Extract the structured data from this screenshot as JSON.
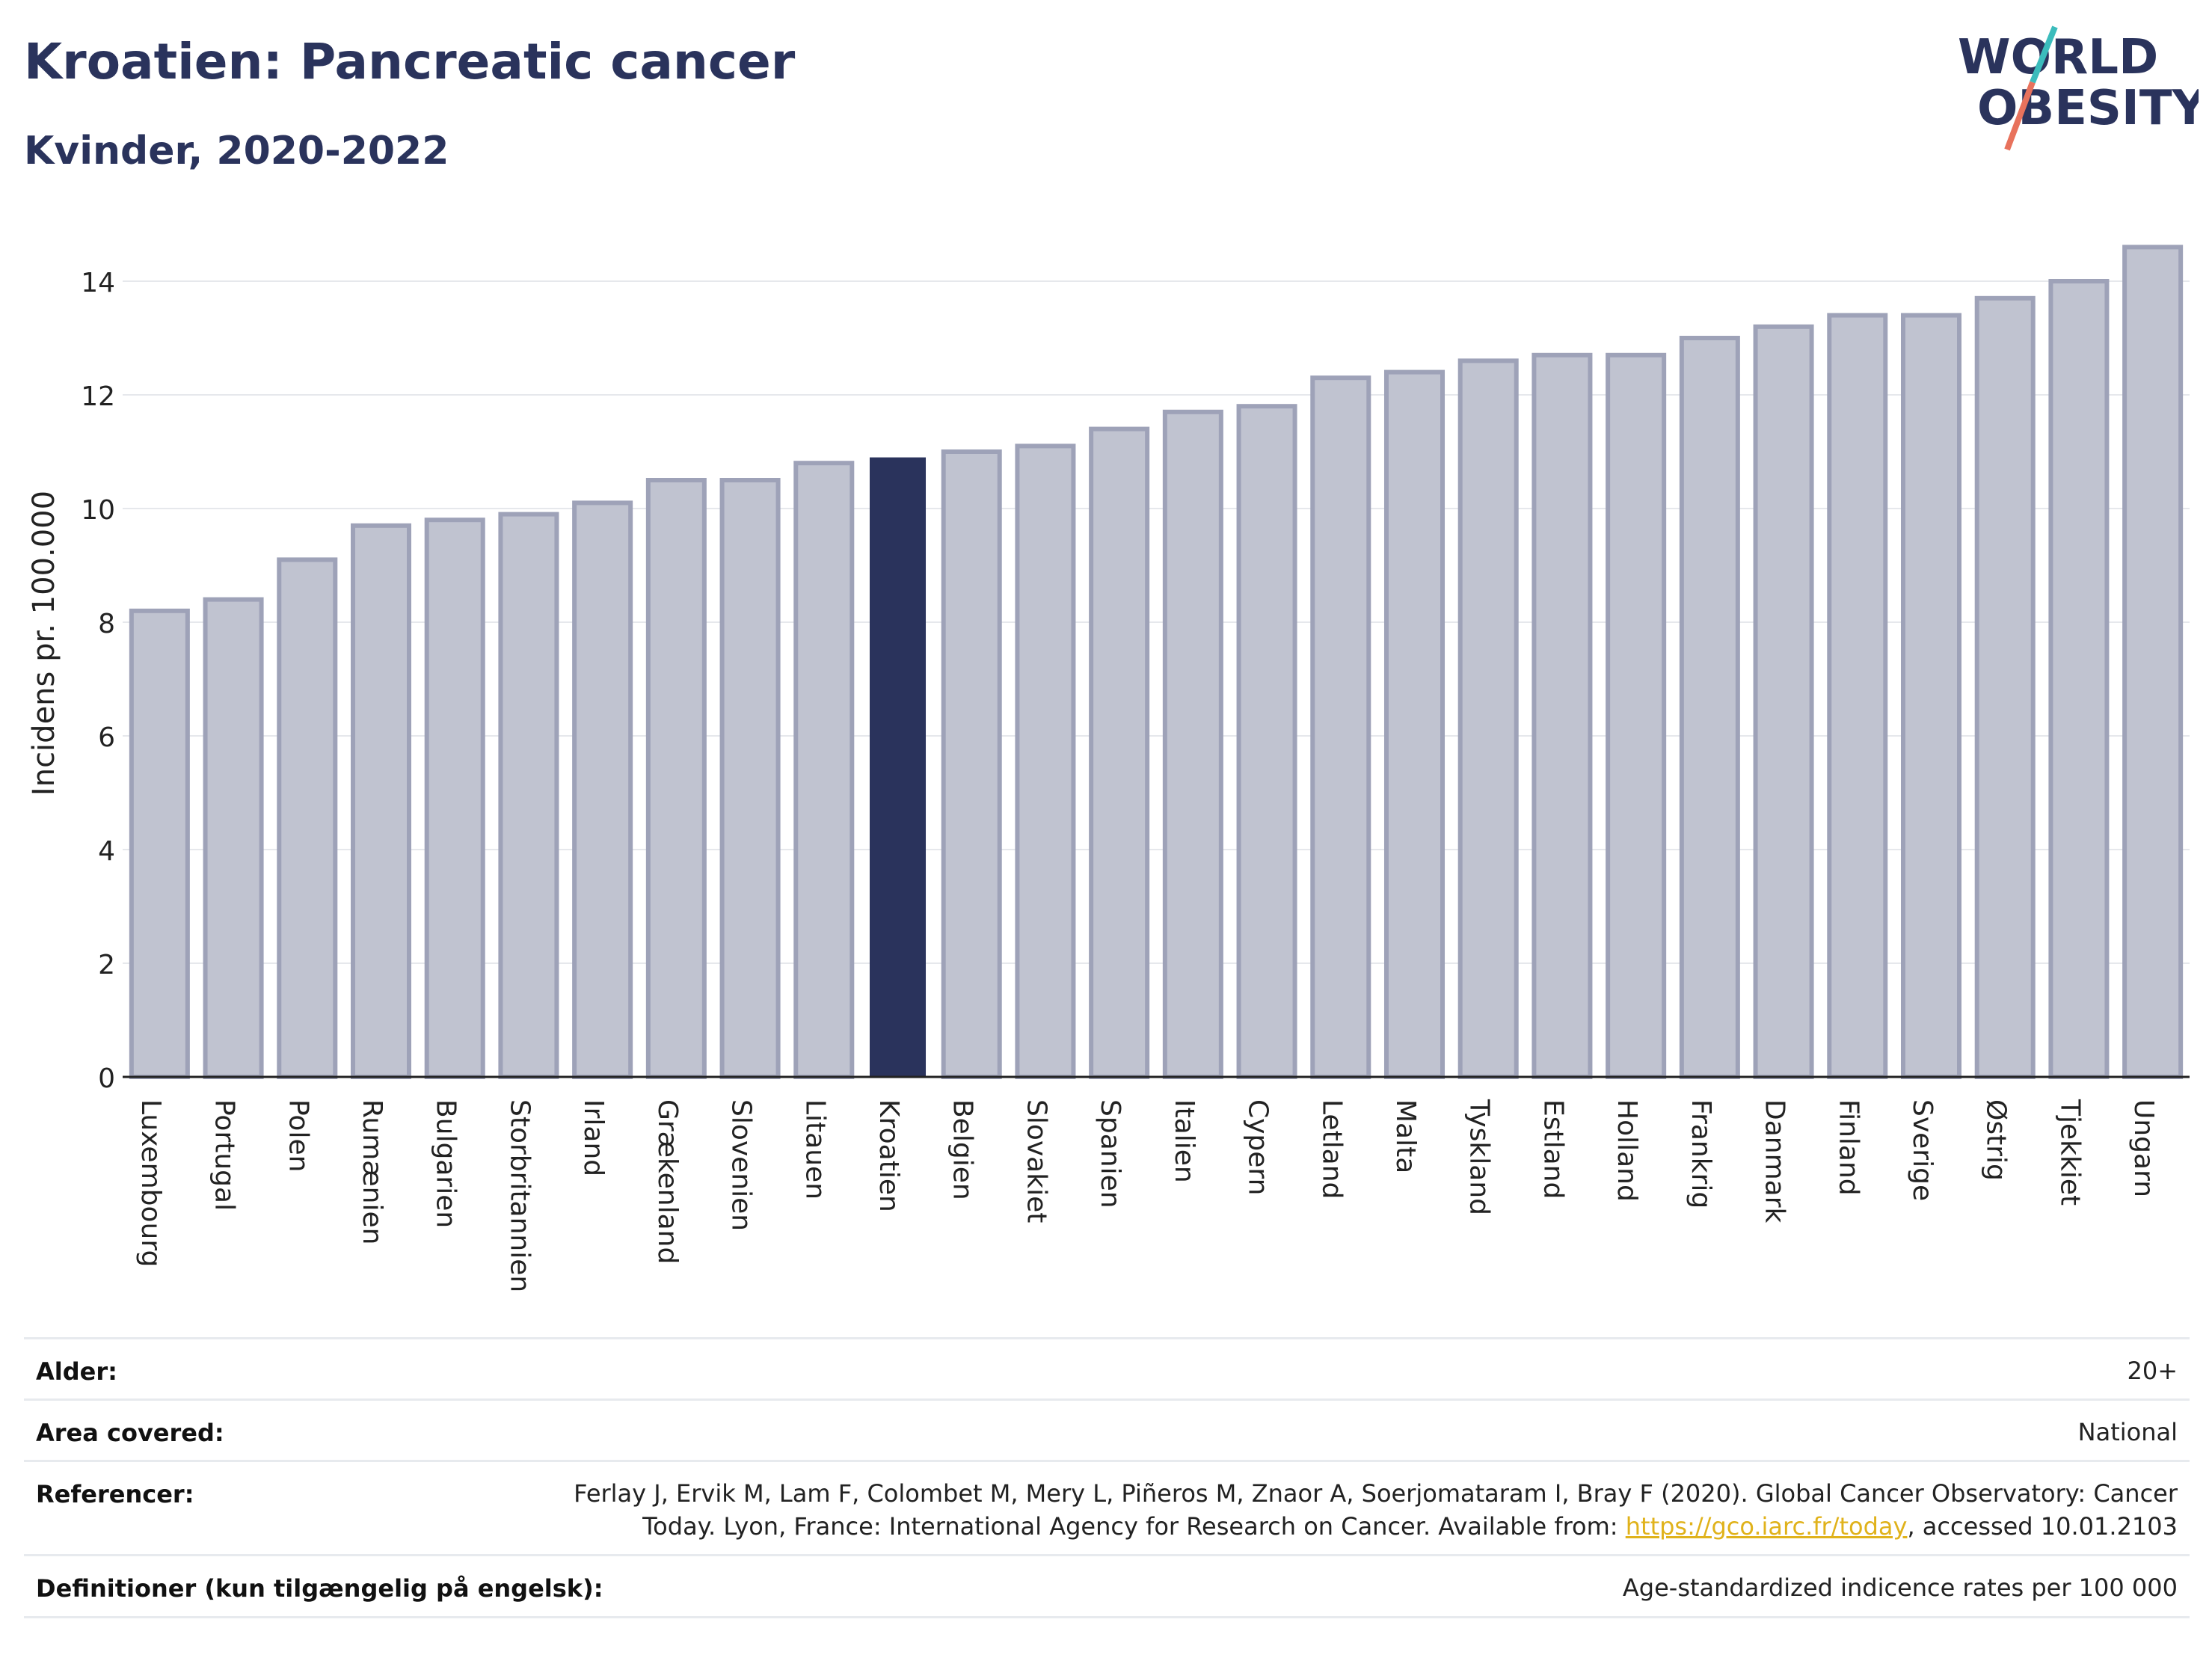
{
  "header": {
    "title": "Kroatien: Pancreatic cancer",
    "subtitle": "Kvinder, 2020-2022"
  },
  "logo": {
    "line1": "WORLD",
    "line2": "OBESITY"
  },
  "colors": {
    "highlight": "#2a335c",
    "bar_fill": "#c0c3d0",
    "bar_stroke": "#9ea2b8",
    "grid": "#e6e8ec",
    "logo_teal": "#3bbcbc",
    "logo_coral": "#e8725c",
    "link": "#e0b21b"
  },
  "chart_data": {
    "type": "bar",
    "title": "Kroatien: Pancreatic cancer",
    "subtitle": "Kvinder, 2020-2022",
    "ylabel": "Incidens pr. 100.000",
    "xlabel": "",
    "ylim": [
      0,
      15
    ],
    "yticks": [
      0,
      2,
      4,
      6,
      8,
      10,
      12,
      14
    ],
    "grid": true,
    "highlight_category": "Kroatien",
    "categories": [
      "Luxembourg",
      "Portugal",
      "Polen",
      "Rumænien",
      "Bulgarien",
      "Storbritannien",
      "Irland",
      "Grækenland",
      "Slovenien",
      "Litauen",
      "Kroatien",
      "Belgien",
      "Slovakiet",
      "Spanien",
      "Italien",
      "Cypern",
      "Letland",
      "Malta",
      "Tyskland",
      "Estland",
      "Holland",
      "Frankrig",
      "Danmark",
      "Finland",
      "Sverige",
      "Østrig",
      "Tjekkiet",
      "Ungarn"
    ],
    "values": [
      8.2,
      8.4,
      9.1,
      9.7,
      9.8,
      9.9,
      10.1,
      10.5,
      10.5,
      10.8,
      10.9,
      11.0,
      11.1,
      11.4,
      11.7,
      11.8,
      12.3,
      12.4,
      12.6,
      12.7,
      12.7,
      13.0,
      13.2,
      13.4,
      13.4,
      13.7,
      14.0,
      14.6
    ]
  },
  "footer": {
    "age": {
      "label": "Alder:",
      "value": "20+"
    },
    "area": {
      "label": "Area covered:",
      "value": "National"
    },
    "references": {
      "label": "Referencer:",
      "line1": "Ferlay J, Ervik M, Lam F, Colombet M, Mery L, Piñeros M, Znaor A, Soerjomataram I, Bray F (2020). Global Cancer Observatory: Cancer",
      "line2_pre": "Today. Lyon, France: International Agency for Research on Cancer. Available from: ",
      "link": "https://gco.iarc.fr/today",
      "line2_post": ", accessed 10.01.2103"
    },
    "definitions": {
      "label": "Definitioner (kun tilgængelig på engelsk):",
      "value": "Age-standardized indicence rates per 100 000"
    }
  }
}
